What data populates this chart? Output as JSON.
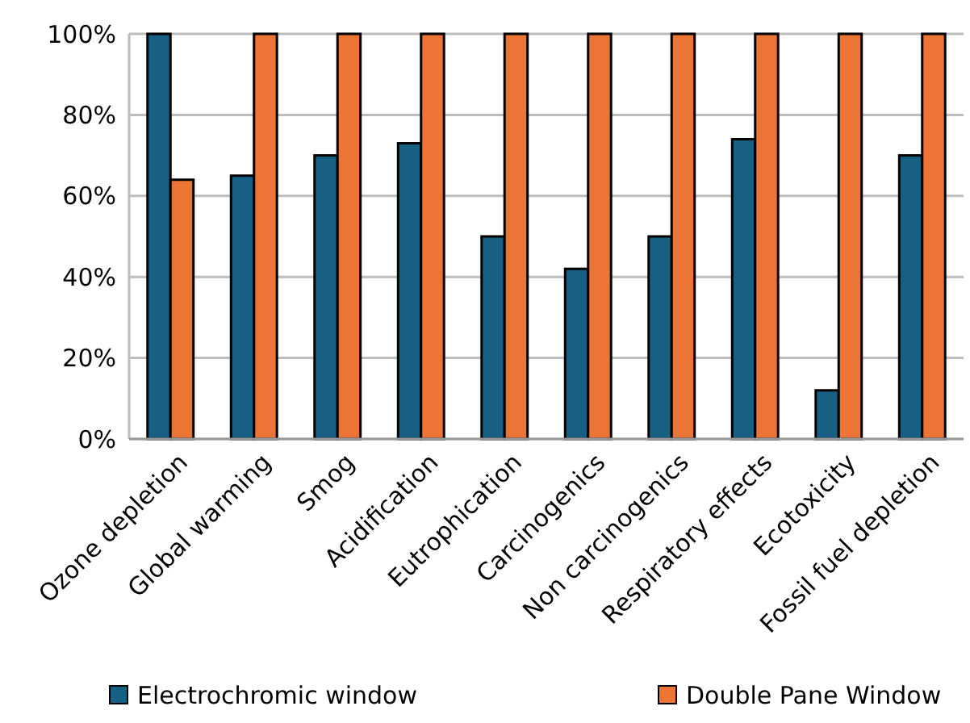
{
  "chart_data": {
    "type": "bar",
    "categories": [
      "Ozone depletion",
      "Global warming",
      "Smog",
      "Acidification",
      "Eutrophication",
      "Carcinogenics",
      "Non carcinogenics",
      "Respiratory effects",
      "Ecotoxicity",
      "Fossil fuel depletion"
    ],
    "series": [
      {
        "name": "Electrochromic window",
        "color": "#175f83",
        "values": [
          100,
          65,
          70,
          73,
          50,
          42,
          50,
          74,
          12,
          70
        ]
      },
      {
        "name": "Double Pane Window",
        "color": "#ec7434",
        "values": [
          64,
          100,
          100,
          100,
          100,
          100,
          100,
          100,
          100,
          100
        ]
      }
    ],
    "ylim": [
      0,
      100
    ],
    "yticks": [
      {
        "value": 0,
        "label": "0%"
      },
      {
        "value": 20,
        "label": "20%"
      },
      {
        "value": 40,
        "label": "40%"
      },
      {
        "value": 60,
        "label": "60%"
      },
      {
        "value": 80,
        "label": "80%"
      },
      {
        "value": 100,
        "label": "100%"
      }
    ],
    "grid": "y",
    "legend": "bottom"
  }
}
